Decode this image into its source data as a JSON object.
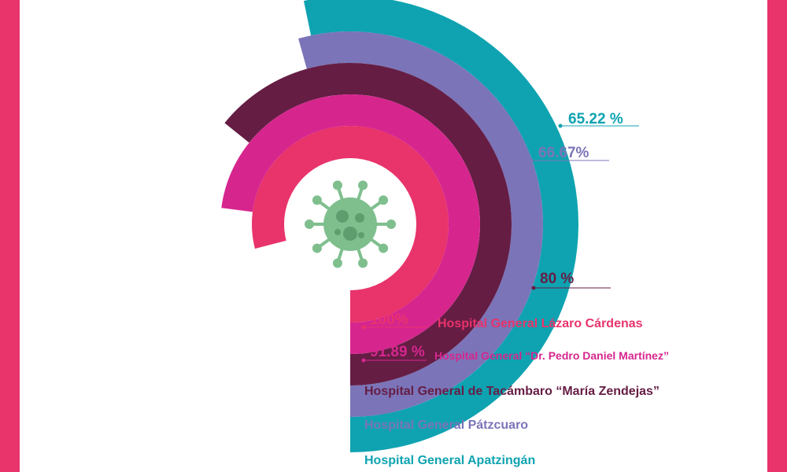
{
  "theme": {
    "frame_color": "#e8336b",
    "virus_color": "#7fbf8e",
    "center_color": "#ffffff"
  },
  "chart_data": {
    "type": "radial-bar",
    "title": "",
    "unit": "%",
    "series": [
      {
        "name": "Hospital General Apatzingán",
        "value": 65.22,
        "label": "65.22 %",
        "color": "#0fa3b1"
      },
      {
        "name": "Hospital General Pátzcuaro",
        "value": 66.67,
        "label": "66.67%",
        "color": "#7b74b8"
      },
      {
        "name": "Hospital General de Tacámbaro “María Zendejas”",
        "value": 80,
        "label": "80 %",
        "color": "#651d44"
      },
      {
        "name": "Hospital General “Dr. Pedro Daniel Martínez”",
        "value": 91.89,
        "label": "91.89 %",
        "color": "#d6268e"
      },
      {
        "name": "Hospital General Lázaro Cárdenas",
        "value": 100,
        "label": "100%",
        "color": "#e8336b"
      }
    ]
  }
}
